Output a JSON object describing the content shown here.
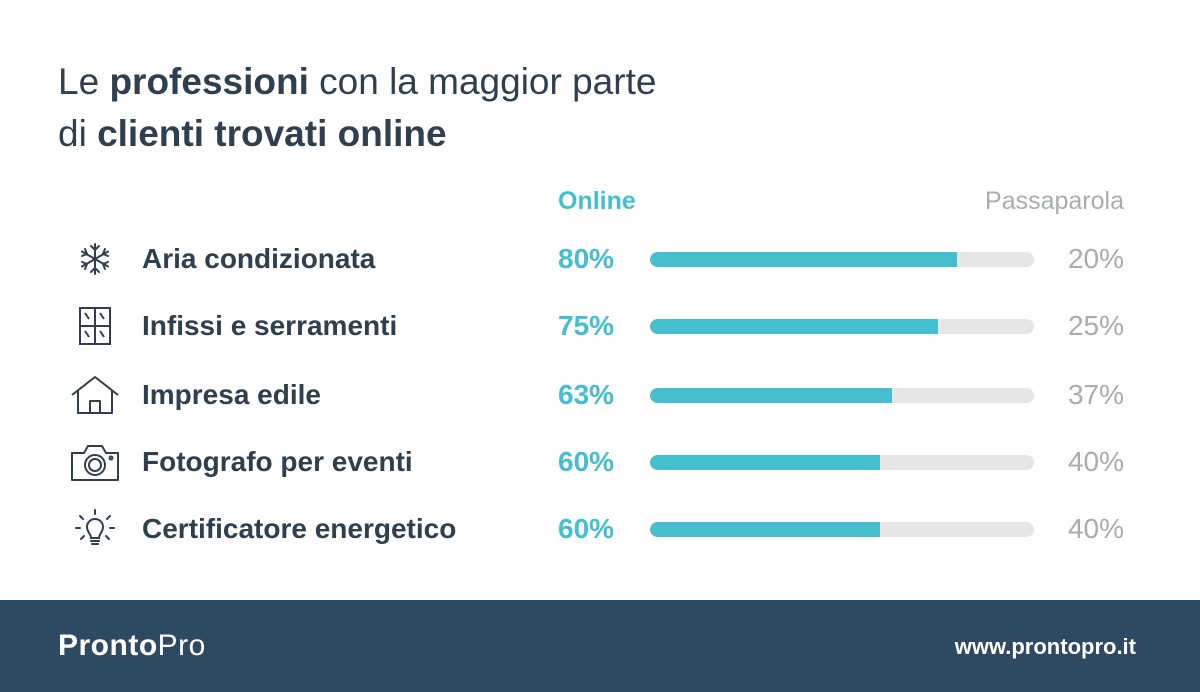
{
  "title": {
    "pre": "Le ",
    "bold1": "professioni",
    "mid": " con la maggior parte",
    "line2_pre": "di ",
    "bold2": "clienti trovati online"
  },
  "headers": {
    "online": "Online",
    "passaparola": "Passaparola"
  },
  "colors": {
    "accent": "#45bfcd",
    "track": "#e6e6e6",
    "text": "#2f3f4e",
    "muted": "#a8acb0",
    "footer": "#2d4a62"
  },
  "chart_data": {
    "type": "bar",
    "orientation": "horizontal",
    "stacked": true,
    "categories": [
      "Aria condizionata",
      "Infissi e serramenti",
      "Impresa edile",
      "Fotografo per eventi",
      "Certificatore energetico"
    ],
    "icons": [
      "snowflake-icon",
      "window-icon",
      "house-icon",
      "camera-icon",
      "lightbulb-icon"
    ],
    "series": [
      {
        "name": "Online",
        "values": [
          80,
          75,
          63,
          60,
          60
        ],
        "labels": [
          "80%",
          "75%",
          "63%",
          "60%",
          "60%"
        ]
      },
      {
        "name": "Passaparola",
        "values": [
          20,
          25,
          37,
          40,
          40
        ],
        "labels": [
          "20%",
          "25%",
          "37%",
          "40%",
          "40%"
        ]
      }
    ],
    "xlim": [
      0,
      100
    ]
  },
  "footer": {
    "brand_a": "Pronto",
    "brand_b": "Pro",
    "site": "www.prontopro.it"
  }
}
